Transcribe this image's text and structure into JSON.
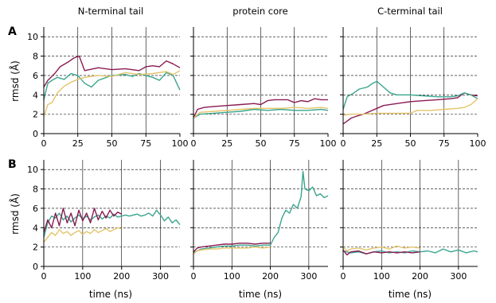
{
  "colors": {
    "maroon": "#8b1a52",
    "teal": "#3aa58e",
    "gold": "#e3c46a"
  },
  "row_labels": [
    "A",
    "B"
  ],
  "col_titles": [
    "N-terminal tail",
    "protein core",
    "C-terminal tail"
  ],
  "ylabel": "rmsd (Å)",
  "xlabel": "time (ns)",
  "chart_data": [
    {
      "type": "line",
      "title": "N-terminal tail",
      "panel": "A",
      "xlim": [
        0,
        100
      ],
      "ylim": [
        0,
        11
      ],
      "xticks": [
        0,
        25,
        50,
        75,
        100
      ],
      "yticks": [
        0,
        2,
        4,
        6,
        8,
        10
      ],
      "grid": true,
      "series": [
        {
          "color": "#8b1a52",
          "x": [
            0,
            3,
            8,
            12,
            18,
            22,
            26,
            30,
            40,
            50,
            60,
            70,
            75,
            80,
            85,
            90,
            95,
            100
          ],
          "y": [
            4.8,
            5.5,
            6.2,
            6.9,
            7.4,
            7.8,
            8.0,
            6.5,
            6.8,
            6.6,
            6.7,
            6.5,
            6.9,
            7.0,
            6.9,
            7.5,
            7.2,
            6.8
          ]
        },
        {
          "color": "#3aa58e",
          "x": [
            0,
            3,
            6,
            10,
            15,
            20,
            25,
            30,
            35,
            40,
            50,
            60,
            65,
            70,
            75,
            80,
            85,
            90,
            95,
            100
          ],
          "y": [
            3.5,
            5.2,
            5.5,
            5.8,
            5.6,
            6.2,
            6.0,
            5.2,
            4.8,
            5.5,
            6.0,
            6.1,
            5.9,
            6.2,
            6.0,
            5.8,
            5.5,
            6.3,
            6.0,
            4.5
          ]
        },
        {
          "color": "#e3c46a",
          "x": [
            0,
            3,
            6,
            10,
            15,
            20,
            25,
            30,
            40,
            50,
            60,
            70,
            80,
            90,
            95,
            100
          ],
          "y": [
            1.8,
            3.0,
            3.2,
            4.2,
            4.9,
            5.3,
            5.6,
            5.8,
            6.0,
            5.9,
            6.3,
            6.1,
            6.2,
            6.4,
            6.1,
            6.5
          ]
        }
      ]
    },
    {
      "type": "line",
      "title": "protein core",
      "panel": "A",
      "xlim": [
        0,
        100
      ],
      "ylim": [
        0,
        11
      ],
      "xticks": [
        0,
        25,
        50,
        75,
        100
      ],
      "yticks": [
        0,
        2,
        4,
        6,
        8,
        10
      ],
      "grid": true,
      "series": [
        {
          "color": "#8b1a52",
          "x": [
            0,
            3,
            8,
            15,
            25,
            35,
            45,
            50,
            55,
            60,
            70,
            75,
            80,
            85,
            90,
            95,
            100
          ],
          "y": [
            1.6,
            2.5,
            2.7,
            2.8,
            2.9,
            3.0,
            3.1,
            3.0,
            3.4,
            3.5,
            3.5,
            3.2,
            3.4,
            3.3,
            3.6,
            3.5,
            3.5
          ]
        },
        {
          "color": "#3aa58e",
          "x": [
            0,
            5,
            15,
            25,
            35,
            45,
            55,
            65,
            75,
            85,
            95,
            100
          ],
          "y": [
            1.6,
            2.0,
            2.1,
            2.2,
            2.3,
            2.5,
            2.4,
            2.5,
            2.4,
            2.4,
            2.5,
            2.4
          ]
        },
        {
          "color": "#e3c46a",
          "x": [
            0,
            5,
            15,
            25,
            35,
            45,
            55,
            65,
            75,
            85,
            95,
            100
          ],
          "y": [
            1.6,
            2.2,
            2.3,
            2.4,
            2.5,
            2.6,
            2.6,
            2.6,
            2.7,
            2.6,
            2.7,
            2.6
          ]
        }
      ]
    },
    {
      "type": "line",
      "title": "C-terminal tail",
      "panel": "A",
      "xlim": [
        0,
        100
      ],
      "ylim": [
        0,
        11
      ],
      "xticks": [
        0,
        25,
        50,
        75,
        100
      ],
      "yticks": [
        0,
        2,
        4,
        6,
        8,
        10
      ],
      "grid": true,
      "series": [
        {
          "color": "#8b1a52",
          "x": [
            0,
            3,
            6,
            10,
            15,
            20,
            25,
            30,
            40,
            50,
            60,
            70,
            80,
            85,
            90,
            95,
            100
          ],
          "y": [
            1.0,
            1.3,
            1.6,
            1.8,
            2.0,
            2.3,
            2.6,
            2.9,
            3.1,
            3.3,
            3.4,
            3.5,
            3.6,
            3.7,
            4.2,
            4.0,
            3.9
          ]
        },
        {
          "color": "#3aa58e",
          "x": [
            0,
            3,
            8,
            12,
            18,
            22,
            25,
            30,
            35,
            40,
            50,
            60,
            70,
            80,
            85,
            90,
            95,
            100
          ],
          "y": [
            2.5,
            3.8,
            4.2,
            4.6,
            4.8,
            5.2,
            5.4,
            4.8,
            4.2,
            4.0,
            4.0,
            3.9,
            3.8,
            3.8,
            3.9,
            4.2,
            4.0,
            3.6
          ]
        },
        {
          "color": "#e3c46a",
          "x": [
            0,
            5,
            15,
            25,
            35,
            45,
            50,
            55,
            65,
            75,
            85,
            90,
            95,
            100
          ],
          "y": [
            1.9,
            2.0,
            2.0,
            2.1,
            2.1,
            2.1,
            2.1,
            2.4,
            2.4,
            2.5,
            2.6,
            2.7,
            3.0,
            3.6
          ]
        }
      ]
    },
    {
      "type": "line",
      "title": "",
      "panel": "B",
      "xlim": [
        0,
        350
      ],
      "ylim": [
        0,
        11
      ],
      "xticks": [
        0,
        100,
        200,
        300
      ],
      "yticks": [
        0,
        2,
        4,
        6,
        8,
        10
      ],
      "grid": true,
      "series": [
        {
          "color": "#3aa58e",
          "x": [
            0,
            10,
            20,
            30,
            40,
            50,
            60,
            70,
            80,
            90,
            100,
            110,
            120,
            130,
            140,
            150,
            160,
            170,
            180,
            190,
            200,
            210,
            220,
            230,
            240,
            250,
            260,
            270,
            280,
            290,
            300,
            310,
            320,
            330,
            340,
            350
          ],
          "y": [
            3.0,
            4.5,
            5.2,
            5.0,
            5.5,
            4.8,
            5.2,
            4.6,
            5.0,
            5.3,
            4.9,
            5.2,
            4.8,
            5.1,
            5.3,
            4.9,
            5.2,
            5.0,
            5.4,
            5.1,
            5.2,
            5.3,
            5.2,
            5.3,
            5.4,
            5.2,
            5.3,
            5.5,
            5.2,
            5.8,
            5.3,
            4.7,
            5.1,
            4.5,
            4.8,
            4.3
          ]
        },
        {
          "color": "#8b1a52",
          "x": [
            0,
            10,
            20,
            30,
            40,
            50,
            60,
            70,
            80,
            90,
            100,
            110,
            120,
            130,
            140,
            150,
            160,
            170,
            180,
            190,
            200
          ],
          "y": [
            3.5,
            4.8,
            4.0,
            5.5,
            4.2,
            6.0,
            4.5,
            5.5,
            4.2,
            5.8,
            4.7,
            5.5,
            4.5,
            6.0,
            4.8,
            5.7,
            5.0,
            5.8,
            5.2,
            5.6,
            5.4
          ]
        },
        {
          "color": "#e3c46a",
          "x": [
            0,
            10,
            20,
            30,
            40,
            50,
            60,
            70,
            80,
            90,
            100,
            110,
            120,
            130,
            140,
            150,
            160,
            170,
            180,
            190,
            200
          ],
          "y": [
            2.5,
            3.0,
            3.5,
            3.2,
            3.8,
            3.4,
            3.6,
            3.2,
            3.5,
            3.7,
            3.3,
            3.6,
            3.4,
            3.8,
            3.5,
            3.7,
            3.9,
            3.6,
            3.8,
            4.0,
            3.9
          ]
        }
      ]
    },
    {
      "type": "line",
      "title": "",
      "panel": "B",
      "xlim": [
        0,
        350
      ],
      "ylim": [
        0,
        11
      ],
      "xticks": [
        0,
        100,
        200,
        300
      ],
      "yticks": [
        0,
        2,
        4,
        6,
        8,
        10
      ],
      "grid": true,
      "series": [
        {
          "color": "#3aa58e",
          "x": [
            0,
            20,
            40,
            60,
            80,
            100,
            120,
            140,
            160,
            180,
            200,
            210,
            220,
            230,
            240,
            250,
            260,
            270,
            280,
            285,
            290,
            300,
            310,
            320,
            330,
            340,
            350
          ],
          "y": [
            1.4,
            1.8,
            1.9,
            2.0,
            2.1,
            2.1,
            2.2,
            2.2,
            2.1,
            2.2,
            2.2,
            3.0,
            3.5,
            5.0,
            5.8,
            5.5,
            6.4,
            6.0,
            7.2,
            9.8,
            8.0,
            7.8,
            8.2,
            7.3,
            7.5,
            7.1,
            7.3
          ]
        },
        {
          "color": "#8b1a52",
          "x": [
            0,
            10,
            20,
            40,
            60,
            80,
            100,
            120,
            140,
            160,
            180,
            200
          ],
          "y": [
            1.5,
            1.9,
            2.0,
            2.1,
            2.2,
            2.3,
            2.3,
            2.4,
            2.4,
            2.3,
            2.4,
            2.4
          ]
        },
        {
          "color": "#e3c46a",
          "x": [
            0,
            10,
            20,
            40,
            60,
            80,
            100,
            120,
            140,
            160,
            180,
            200
          ],
          "y": [
            1.3,
            1.6,
            1.7,
            1.8,
            1.8,
            1.9,
            1.9,
            1.9,
            1.9,
            2.0,
            1.9,
            2.0
          ]
        }
      ]
    },
    {
      "type": "line",
      "title": "",
      "panel": "B",
      "xlim": [
        0,
        350
      ],
      "ylim": [
        0,
        11
      ],
      "xticks": [
        0,
        100,
        200,
        300
      ],
      "yticks": [
        0,
        2,
        4,
        6,
        8,
        10
      ],
      "grid": true,
      "series": [
        {
          "color": "#3aa58e",
          "x": [
            0,
            20,
            40,
            60,
            80,
            100,
            120,
            140,
            160,
            180,
            200,
            220,
            240,
            260,
            280,
            300,
            320,
            340,
            350
          ],
          "y": [
            1.6,
            1.4,
            1.5,
            1.3,
            1.5,
            1.6,
            1.4,
            1.5,
            1.4,
            1.6,
            1.5,
            1.6,
            1.4,
            1.8,
            1.5,
            1.7,
            1.4,
            1.6,
            1.5
          ]
        },
        {
          "color": "#8b1a52",
          "x": [
            0,
            10,
            20,
            40,
            60,
            80,
            100,
            120,
            140,
            160,
            180,
            200
          ],
          "y": [
            1.7,
            1.2,
            1.5,
            1.6,
            1.3,
            1.5,
            1.4,
            1.5,
            1.4,
            1.5,
            1.4,
            1.5
          ]
        },
        {
          "color": "#e3c46a",
          "x": [
            0,
            10,
            20,
            40,
            60,
            80,
            100,
            120,
            140,
            160,
            180,
            200
          ],
          "y": [
            2.0,
            1.6,
            1.8,
            1.9,
            1.7,
            1.9,
            2.0,
            1.8,
            2.1,
            1.9,
            2.0,
            1.9
          ]
        }
      ]
    }
  ]
}
